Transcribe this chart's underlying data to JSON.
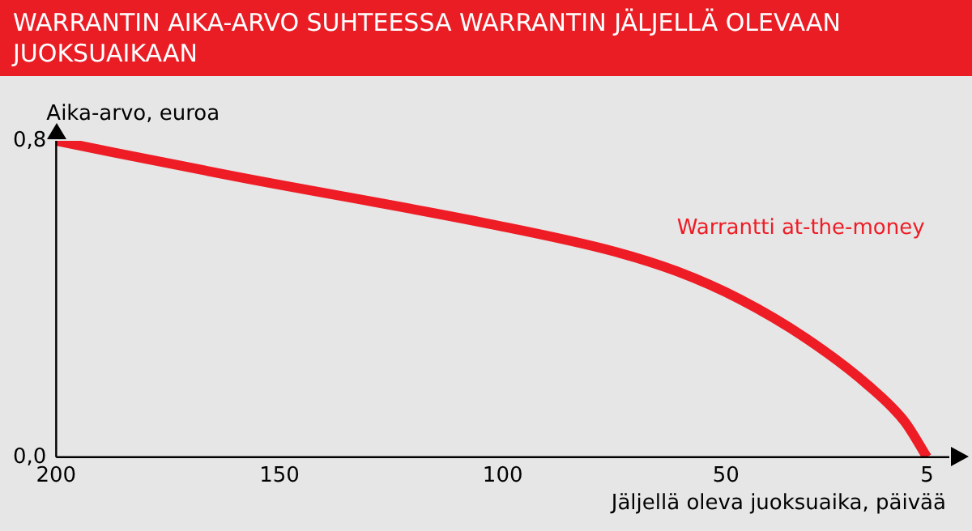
{
  "chart_data": {
    "type": "line",
    "title": "WARRANTIN AIKA-ARVO SUHTEESSA WARRANTIN JÄLJELLÄ OLEVAAN JUOKSUAIKAAN",
    "xlabel": "Jäljellä oleva juoksuaika, päivää",
    "ylabel": "Aika-arvo, euroa",
    "xlim": [
      200,
      0
    ],
    "xticks": [
      200,
      150,
      100,
      50,
      5
    ],
    "ylim": [
      0,
      0.8
    ],
    "yticks": [
      {
        "value": 0,
        "label": "0,0"
      },
      {
        "value": 0.8,
        "label": "0,8"
      }
    ],
    "grid": false,
    "legend": false,
    "marker": "none",
    "line_style": "solid",
    "series": [
      {
        "name": "Warrantti at-the-money",
        "color": "#ee1c25",
        "x": [
          200,
          160,
          103,
          75,
          61,
          47,
          32,
          18,
          10,
          5
        ],
        "values": [
          0.8,
          0.71,
          0.59,
          0.52,
          0.47,
          0.4,
          0.3,
          0.18,
          0.09,
          0
        ]
      }
    ]
  }
}
